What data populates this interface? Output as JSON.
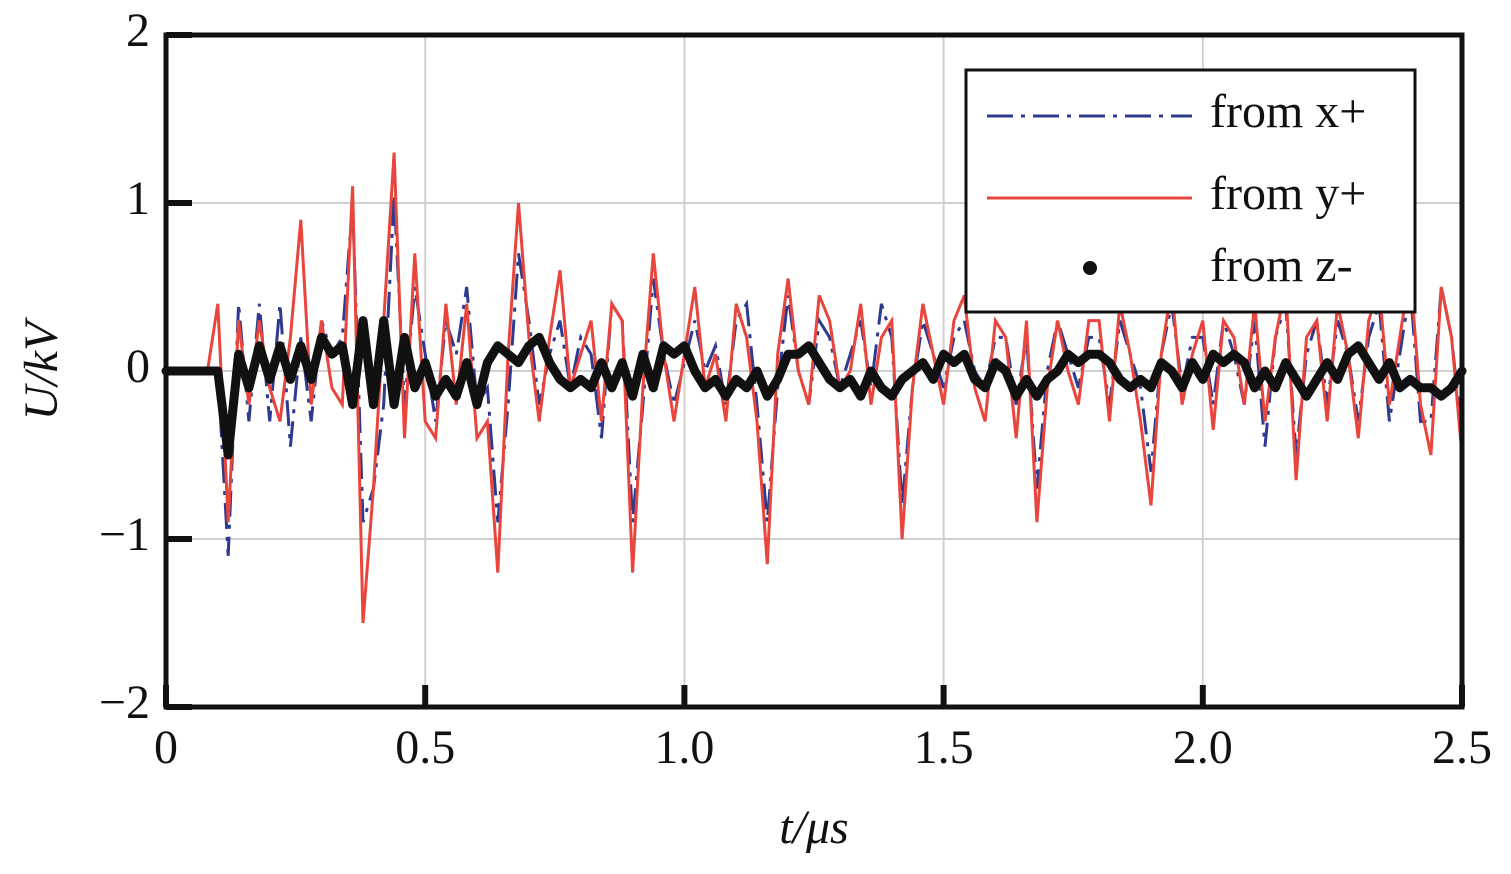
{
  "chart_data": {
    "type": "line",
    "xlabel": "t/μs",
    "ylabel": "U/kV",
    "x": [
      0,
      0.02,
      0.04,
      0.06,
      0.08,
      0.1,
      0.12,
      0.14,
      0.16,
      0.18,
      0.2,
      0.22,
      0.24,
      0.26,
      0.28,
      0.3,
      0.32,
      0.34,
      0.36,
      0.38,
      0.4,
      0.42,
      0.44,
      0.46,
      0.48,
      0.5,
      0.52,
      0.54,
      0.56,
      0.58,
      0.6,
      0.62,
      0.64,
      0.66,
      0.68,
      0.7,
      0.72,
      0.74,
      0.76,
      0.78,
      0.8,
      0.82,
      0.84,
      0.86,
      0.88,
      0.9,
      0.92,
      0.94,
      0.96,
      0.98,
      1,
      1.02,
      1.04,
      1.06,
      1.08,
      1.1,
      1.12,
      1.14,
      1.16,
      1.18,
      1.2,
      1.22,
      1.24,
      1.26,
      1.28,
      1.3,
      1.32,
      1.34,
      1.36,
      1.38,
      1.4,
      1.42,
      1.44,
      1.46,
      1.48,
      1.5,
      1.52,
      1.54,
      1.56,
      1.58,
      1.6,
      1.62,
      1.64,
      1.66,
      1.68,
      1.7,
      1.72,
      1.74,
      1.76,
      1.78,
      1.8,
      1.82,
      1.84,
      1.86,
      1.88,
      1.9,
      1.92,
      1.94,
      1.96,
      1.98,
      2,
      2.02,
      2.04,
      2.06,
      2.08,
      2.1,
      2.12,
      2.14,
      2.16,
      2.18,
      2.2,
      2.22,
      2.24,
      2.26,
      2.28,
      2.3,
      2.32,
      2.34,
      2.36,
      2.38,
      2.4,
      2.42,
      2.44,
      2.46,
      2.48,
      2.5
    ],
    "series": [
      {
        "name": "from x+",
        "color": "#2e3a8f",
        "linestyle": "dashdot",
        "values": [
          0,
          0,
          0,
          0,
          0,
          0,
          -1.1,
          0.4,
          -0.3,
          0.4,
          -0.3,
          0.4,
          -0.45,
          0.2,
          -0.3,
          0.3,
          0.1,
          0.2,
          1.0,
          -0.9,
          -0.7,
          -0.2,
          1.05,
          -0.2,
          0.5,
          0.1,
          -0.3,
          0.3,
          0.1,
          0.5,
          -0.2,
          -0.1,
          -0.9,
          -0.2,
          0.7,
          0.3,
          -0.2,
          0.1,
          0.3,
          -0.1,
          0.2,
          0.1,
          -0.4,
          0.4,
          0.3,
          -0.9,
          -0.2,
          0.55,
          0.1,
          -0.2,
          0.05,
          0.3,
          0,
          0.15,
          -0.2,
          0.3,
          0.4,
          -0.2,
          -0.9,
          -0.1,
          0.45,
          0,
          -0.2,
          0.3,
          0.2,
          -0.1,
          0.1,
          0.3,
          -0.1,
          0.4,
          0.2,
          -0.8,
          -0.1,
          0.3,
          0.1,
          -0.1,
          0.2,
          0.3,
          0,
          -0.1,
          0.2,
          0.2,
          -0.2,
          0.2,
          -0.7,
          0,
          0.3,
          0.1,
          -0.1,
          0.2,
          0.2,
          -0.2,
          0.3,
          0.1,
          -0.1,
          -0.6,
          0.1,
          0.4,
          -0.1,
          0.2,
          0.2,
          -0.2,
          0.3,
          0.1,
          -0.2,
          0.3,
          -0.45,
          0.2,
          0.4,
          -0.5,
          0.1,
          0.3,
          -0.2,
          0.3,
          0.1,
          -0.3,
          0.2,
          0.4,
          -0.3,
          0.1,
          0.5,
          -0.3,
          -0.3,
          0.5,
          0.2,
          -0.4
        ]
      },
      {
        "name": "from y+",
        "color": "#e8453c",
        "linestyle": "solid",
        "values": [
          0,
          0,
          0,
          0,
          0,
          0.4,
          -0.9,
          0.3,
          -0.2,
          0.3,
          -0.1,
          -0.3,
          0.2,
          0.9,
          -0.2,
          0.3,
          -0.1,
          -0.2,
          1.1,
          -1.5,
          -0.7,
          0.3,
          1.3,
          -0.4,
          0.7,
          -0.3,
          -0.4,
          0.4,
          -0.2,
          0.4,
          -0.4,
          -0.3,
          -1.2,
          0.1,
          1.0,
          0.2,
          -0.3,
          0.2,
          0.6,
          -0.1,
          0.1,
          0.3,
          -0.3,
          0.4,
          0.3,
          -1.2,
          -0.1,
          0.7,
          0.1,
          -0.3,
          0.1,
          0.5,
          -0.1,
          0.1,
          -0.3,
          0.4,
          0.2,
          -0.3,
          -1.15,
          0.1,
          0.55,
          0,
          -0.2,
          0.45,
          0.3,
          -0.1,
          0,
          0.4,
          -0.2,
          0.2,
          0.3,
          -1.0,
          -0.1,
          0.4,
          0.1,
          -0.2,
          0.3,
          0.45,
          -0.1,
          -0.3,
          0.3,
          0.2,
          -0.4,
          0.3,
          -0.9,
          -0.1,
          0.3,
          0,
          -0.2,
          0.3,
          0.3,
          -0.3,
          0.4,
          0.1,
          -0.3,
          -0.8,
          0.1,
          0.5,
          -0.2,
          0.1,
          0.3,
          -0.35,
          0.3,
          0.2,
          -0.2,
          0.4,
          -0.3,
          0.2,
          0.5,
          -0.65,
          0.2,
          0.3,
          -0.3,
          0.4,
          0.1,
          -0.4,
          0.3,
          0.5,
          -0.2,
          0.2,
          0.6,
          -0.2,
          -0.5,
          0.5,
          0.2,
          -0.5
        ]
      },
      {
        "name": "from z-",
        "color": "#111111",
        "linestyle": "dotted",
        "values": [
          0,
          0,
          0,
          0,
          0,
          0,
          -0.5,
          0.1,
          -0.1,
          0.15,
          -0.05,
          0.15,
          -0.05,
          0.15,
          -0.05,
          0.2,
          0.1,
          0.15,
          -0.2,
          0.3,
          -0.2,
          0.3,
          -0.2,
          0.2,
          -0.1,
          0.05,
          -0.15,
          -0.05,
          -0.15,
          0.05,
          -0.2,
          0.05,
          0.15,
          0.1,
          0.05,
          0.15,
          0.2,
          0.05,
          -0.05,
          -0.1,
          -0.05,
          -0.1,
          0.05,
          -0.1,
          0.05,
          -0.15,
          0.1,
          -0.1,
          0.15,
          0.1,
          0.15,
          0,
          -0.1,
          -0.05,
          -0.15,
          -0.05,
          -0.1,
          0,
          -0.15,
          -0.05,
          0.1,
          0.1,
          0.15,
          0.05,
          -0.05,
          -0.1,
          -0.05,
          -0.15,
          0,
          -0.1,
          -0.15,
          -0.05,
          0,
          0.05,
          -0.05,
          0.1,
          0.05,
          0.1,
          -0.05,
          -0.1,
          0.05,
          0,
          -0.15,
          -0.05,
          -0.15,
          -0.05,
          0,
          0.1,
          0.05,
          0.1,
          0.1,
          0.05,
          -0.05,
          -0.1,
          -0.05,
          -0.1,
          0.05,
          0,
          -0.1,
          0.05,
          -0.05,
          0.1,
          0.05,
          0.1,
          0.05,
          -0.1,
          0,
          -0.1,
          0.05,
          -0.05,
          -0.15,
          -0.05,
          0.05,
          -0.05,
          0.1,
          0.15,
          0.05,
          -0.05,
          0.05,
          -0.1,
          -0.05,
          -0.1,
          -0.1,
          -0.15,
          -0.1,
          0
        ]
      }
    ],
    "xlim": [
      0,
      2.5
    ],
    "ylim": [
      -2,
      2
    ],
    "xticks": [
      0,
      0.5,
      {
        "value": 1,
        "label": "1.0"
      },
      1.5,
      {
        "value": 2,
        "label": "2.0"
      },
      2.5
    ],
    "yticks": [
      {
        "value": -2,
        "label": "−2"
      },
      {
        "value": -1,
        "label": "−1"
      },
      0,
      1,
      2
    ],
    "grid": true,
    "legend": "upper right"
  }
}
